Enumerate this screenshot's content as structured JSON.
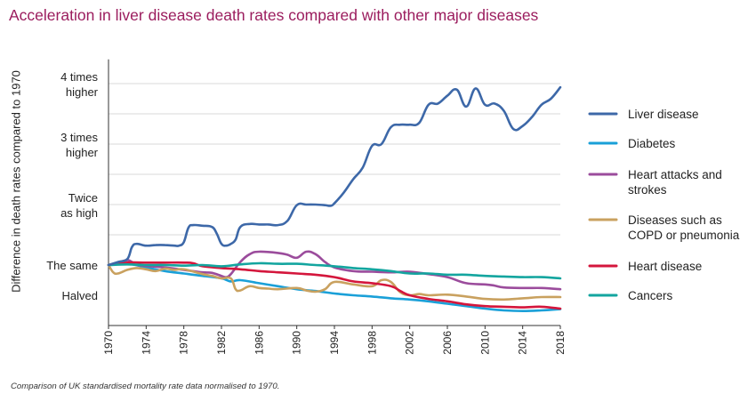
{
  "chart_data": {
    "type": "line",
    "title": "Acceleration in liver disease death rates compared with other major diseases",
    "ylabel": "Difference in death rates compared to 1970",
    "xlabel": "",
    "footnote": "Comparison of UK standardised mortality rate data normalised to 1970.",
    "xlim": [
      1970,
      2018
    ],
    "ylim": [
      0.0,
      4.4
    ],
    "x_ticks": [
      "1970",
      "1974",
      "1978",
      "1982",
      "1986",
      "1990",
      "1994",
      "1998",
      "2002",
      "2006",
      "2010",
      "2014",
      "2018"
    ],
    "y_ticks": [
      {
        "value": 0.5,
        "lines": [
          "Halved"
        ]
      },
      {
        "value": 1,
        "lines": [
          "The same"
        ]
      },
      {
        "value": 2,
        "lines": [
          "Twice",
          "as high"
        ]
      },
      {
        "value": 3,
        "lines": [
          "3 times",
          "higher"
        ]
      },
      {
        "value": 4,
        "lines": [
          "4 times",
          "higher"
        ]
      }
    ],
    "gridlines": [
      1.5,
      2,
      2.5,
      3,
      3.5,
      4
    ],
    "legend_position": "right",
    "series": [
      {
        "name": "Liver disease",
        "color": "#3d68a8",
        "points": [
          [
            1970,
            1.0
          ],
          [
            1971,
            1.05
          ],
          [
            1972,
            1.1
          ],
          [
            1972.5,
            1.3
          ],
          [
            1973,
            1.35
          ],
          [
            1974,
            1.32
          ],
          [
            1975,
            1.33
          ],
          [
            1976,
            1.33
          ],
          [
            1977,
            1.32
          ],
          [
            1977.5,
            1.32
          ],
          [
            1978,
            1.38
          ],
          [
            1978.5,
            1.62
          ],
          [
            1979,
            1.66
          ],
          [
            1980,
            1.65
          ],
          [
            1981,
            1.63
          ],
          [
            1981.5,
            1.52
          ],
          [
            1982,
            1.35
          ],
          [
            1982.5,
            1.32
          ],
          [
            1983,
            1.35
          ],
          [
            1983.5,
            1.42
          ],
          [
            1984,
            1.63
          ],
          [
            1985,
            1.68
          ],
          [
            1986,
            1.67
          ],
          [
            1987,
            1.67
          ],
          [
            1988,
            1.66
          ],
          [
            1989,
            1.73
          ],
          [
            1990,
            1.99
          ],
          [
            1991,
            2.0
          ],
          [
            1992,
            2.0
          ],
          [
            1993,
            1.99
          ],
          [
            1993.6,
            1.98
          ],
          [
            1994,
            2.02
          ],
          [
            1995,
            2.2
          ],
          [
            1996,
            2.42
          ],
          [
            1997,
            2.61
          ],
          [
            1998,
            2.97
          ],
          [
            1999,
            3.0
          ],
          [
            2000,
            3.28
          ],
          [
            2001,
            3.32
          ],
          [
            2002,
            3.32
          ],
          [
            2003,
            3.35
          ],
          [
            2004,
            3.65
          ],
          [
            2005,
            3.67
          ],
          [
            2006,
            3.8
          ],
          [
            2007,
            3.9
          ],
          [
            2008,
            3.62
          ],
          [
            2009,
            3.92
          ],
          [
            2010,
            3.65
          ],
          [
            2011,
            3.67
          ],
          [
            2012,
            3.55
          ],
          [
            2013,
            3.25
          ],
          [
            2014,
            3.3
          ],
          [
            2015,
            3.45
          ],
          [
            2016,
            3.65
          ],
          [
            2017,
            3.75
          ],
          [
            2018,
            3.94
          ]
        ]
      },
      {
        "name": "Diabetes",
        "color": "#1aa0d8",
        "points": [
          [
            1970,
            1.0
          ],
          [
            1972,
            1.02
          ],
          [
            1974,
            0.96
          ],
          [
            1976,
            0.9
          ],
          [
            1978,
            0.86
          ],
          [
            1980,
            0.82
          ],
          [
            1982,
            0.78
          ],
          [
            1983,
            0.73
          ],
          [
            1984,
            0.75
          ],
          [
            1986,
            0.7
          ],
          [
            1988,
            0.65
          ],
          [
            1990,
            0.6
          ],
          [
            1992,
            0.57
          ],
          [
            1994,
            0.53
          ],
          [
            1996,
            0.5
          ],
          [
            1998,
            0.48
          ],
          [
            2000,
            0.45
          ],
          [
            2002,
            0.43
          ],
          [
            2004,
            0.4
          ],
          [
            2006,
            0.36
          ],
          [
            2008,
            0.32
          ],
          [
            2010,
            0.28
          ],
          [
            2012,
            0.25
          ],
          [
            2014,
            0.24
          ],
          [
            2016,
            0.25
          ],
          [
            2018,
            0.27
          ]
        ]
      },
      {
        "name": "Heart attacks and strokes",
        "color": "#9b4c9c",
        "points": [
          [
            1970,
            1.0
          ],
          [
            1971,
            1.04
          ],
          [
            1972,
            1.08
          ],
          [
            1972.5,
            1.05
          ],
          [
            1973,
            1.0
          ],
          [
            1976,
            0.96
          ],
          [
            1978,
            0.92
          ],
          [
            1980,
            0.88
          ],
          [
            1981,
            0.87
          ],
          [
            1982,
            0.82
          ],
          [
            1982.5,
            0.8
          ],
          [
            1983,
            0.85
          ],
          [
            1984,
            1.05
          ],
          [
            1985,
            1.18
          ],
          [
            1986,
            1.22
          ],
          [
            1988,
            1.2
          ],
          [
            1989,
            1.17
          ],
          [
            1990,
            1.12
          ],
          [
            1991,
            1.22
          ],
          [
            1992,
            1.18
          ],
          [
            1993,
            1.05
          ],
          [
            1994,
            0.96
          ],
          [
            1996,
            0.9
          ],
          [
            1998,
            0.89
          ],
          [
            2000,
            0.88
          ],
          [
            2002,
            0.89
          ],
          [
            2004,
            0.85
          ],
          [
            2006,
            0.8
          ],
          [
            2008,
            0.7
          ],
          [
            2010,
            0.68
          ],
          [
            2011,
            0.66
          ],
          [
            2012,
            0.63
          ],
          [
            2014,
            0.62
          ],
          [
            2016,
            0.62
          ],
          [
            2018,
            0.6
          ]
        ]
      },
      {
        "name": "Diseases such as COPD or pneumonia",
        "color": "#c9a15f",
        "points": [
          [
            1970,
            1.0
          ],
          [
            1970.5,
            0.88
          ],
          [
            1971,
            0.86
          ],
          [
            1972,
            0.92
          ],
          [
            1973,
            0.95
          ],
          [
            1974,
            0.93
          ],
          [
            1975,
            0.9
          ],
          [
            1976,
            0.94
          ],
          [
            1977,
            0.92
          ],
          [
            1978,
            0.93
          ],
          [
            1980,
            0.85
          ],
          [
            1981,
            0.82
          ],
          [
            1982,
            0.78
          ],
          [
            1983,
            0.78
          ],
          [
            1983.5,
            0.6
          ],
          [
            1984,
            0.58
          ],
          [
            1985,
            0.65
          ],
          [
            1986,
            0.62
          ],
          [
            1987,
            0.61
          ],
          [
            1988,
            0.6
          ],
          [
            1990,
            0.62
          ],
          [
            1991,
            0.58
          ],
          [
            1992,
            0.56
          ],
          [
            1993,
            0.6
          ],
          [
            1994,
            0.72
          ],
          [
            1996,
            0.68
          ],
          [
            1998,
            0.65
          ],
          [
            1999,
            0.75
          ],
          [
            2000,
            0.72
          ],
          [
            2001,
            0.55
          ],
          [
            2002,
            0.5
          ],
          [
            2003,
            0.52
          ],
          [
            2004,
            0.5
          ],
          [
            2006,
            0.51
          ],
          [
            2008,
            0.48
          ],
          [
            2010,
            0.44
          ],
          [
            2012,
            0.43
          ],
          [
            2014,
            0.45
          ],
          [
            2016,
            0.47
          ],
          [
            2018,
            0.47
          ]
        ]
      },
      {
        "name": "Heart disease",
        "color": "#d4163c",
        "points": [
          [
            1970,
            1.0
          ],
          [
            1972,
            1.04
          ],
          [
            1974,
            1.04
          ],
          [
            1976,
            1.04
          ],
          [
            1978,
            1.04
          ],
          [
            1979,
            1.03
          ],
          [
            1980,
            0.98
          ],
          [
            1982,
            0.95
          ],
          [
            1984,
            0.93
          ],
          [
            1986,
            0.9
          ],
          [
            1988,
            0.88
          ],
          [
            1990,
            0.86
          ],
          [
            1992,
            0.84
          ],
          [
            1994,
            0.8
          ],
          [
            1996,
            0.73
          ],
          [
            1998,
            0.7
          ],
          [
            2000,
            0.65
          ],
          [
            2001,
            0.57
          ],
          [
            2002,
            0.5
          ],
          [
            2004,
            0.44
          ],
          [
            2006,
            0.4
          ],
          [
            2008,
            0.35
          ],
          [
            2010,
            0.32
          ],
          [
            2012,
            0.31
          ],
          [
            2014,
            0.3
          ],
          [
            2016,
            0.31
          ],
          [
            2018,
            0.28
          ]
        ]
      },
      {
        "name": "Cancers",
        "color": "#13a59f",
        "points": [
          [
            1970,
            1.0
          ],
          [
            1972,
            1.01
          ],
          [
            1974,
            1.0
          ],
          [
            1976,
            1.0
          ],
          [
            1978,
            0.99
          ],
          [
            1980,
            1.0
          ],
          [
            1982,
            0.98
          ],
          [
            1984,
            1.01
          ],
          [
            1986,
            1.03
          ],
          [
            1988,
            1.02
          ],
          [
            1990,
            1.02
          ],
          [
            1992,
            1.0
          ],
          [
            1994,
            0.98
          ],
          [
            1996,
            0.95
          ],
          [
            1998,
            0.93
          ],
          [
            2000,
            0.9
          ],
          [
            2002,
            0.86
          ],
          [
            2004,
            0.86
          ],
          [
            2006,
            0.84
          ],
          [
            2008,
            0.84
          ],
          [
            2010,
            0.82
          ],
          [
            2012,
            0.81
          ],
          [
            2014,
            0.8
          ],
          [
            2016,
            0.8
          ],
          [
            2018,
            0.78
          ]
        ]
      }
    ]
  }
}
